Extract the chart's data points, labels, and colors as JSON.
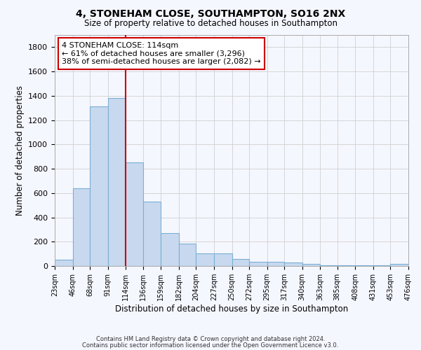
{
  "title1": "4, STONEHAM CLOSE, SOUTHAMPTON, SO16 2NX",
  "title2": "Size of property relative to detached houses in Southampton",
  "xlabel": "Distribution of detached houses by size in Southampton",
  "ylabel": "Number of detached properties",
  "footnote1": "Contains HM Land Registry data © Crown copyright and database right 2024.",
  "footnote2": "Contains public sector information licensed under the Open Government Licence v3.0.",
  "annotation_title": "4 STONEHAM CLOSE: 114sqm",
  "annotation_line1": "← 61% of detached houses are smaller (3,296)",
  "annotation_line2": "38% of semi-detached houses are larger (2,082) →",
  "property_size": 114,
  "bin_edges": [
    23,
    46,
    68,
    91,
    114,
    136,
    159,
    182,
    204,
    227,
    250,
    272,
    295,
    317,
    340,
    363,
    385,
    408,
    431,
    453,
    476
  ],
  "bar_heights": [
    50,
    640,
    1310,
    1380,
    850,
    530,
    270,
    185,
    105,
    105,
    60,
    35,
    35,
    28,
    15,
    8,
    8,
    8,
    5,
    15
  ],
  "bar_color": "#c8d9ef",
  "bar_edgecolor": "#7aafd4",
  "vline_color": "#cc0000",
  "vline_x": 114,
  "annotation_box_color": "#cc0000",
  "annotation_bg": "#ffffff",
  "grid_color": "#d0d0d0",
  "background_color": "#f5f7ff",
  "ylim": [
    0,
    1900
  ],
  "yticks": [
    0,
    200,
    400,
    600,
    800,
    1000,
    1200,
    1400,
    1600,
    1800
  ]
}
